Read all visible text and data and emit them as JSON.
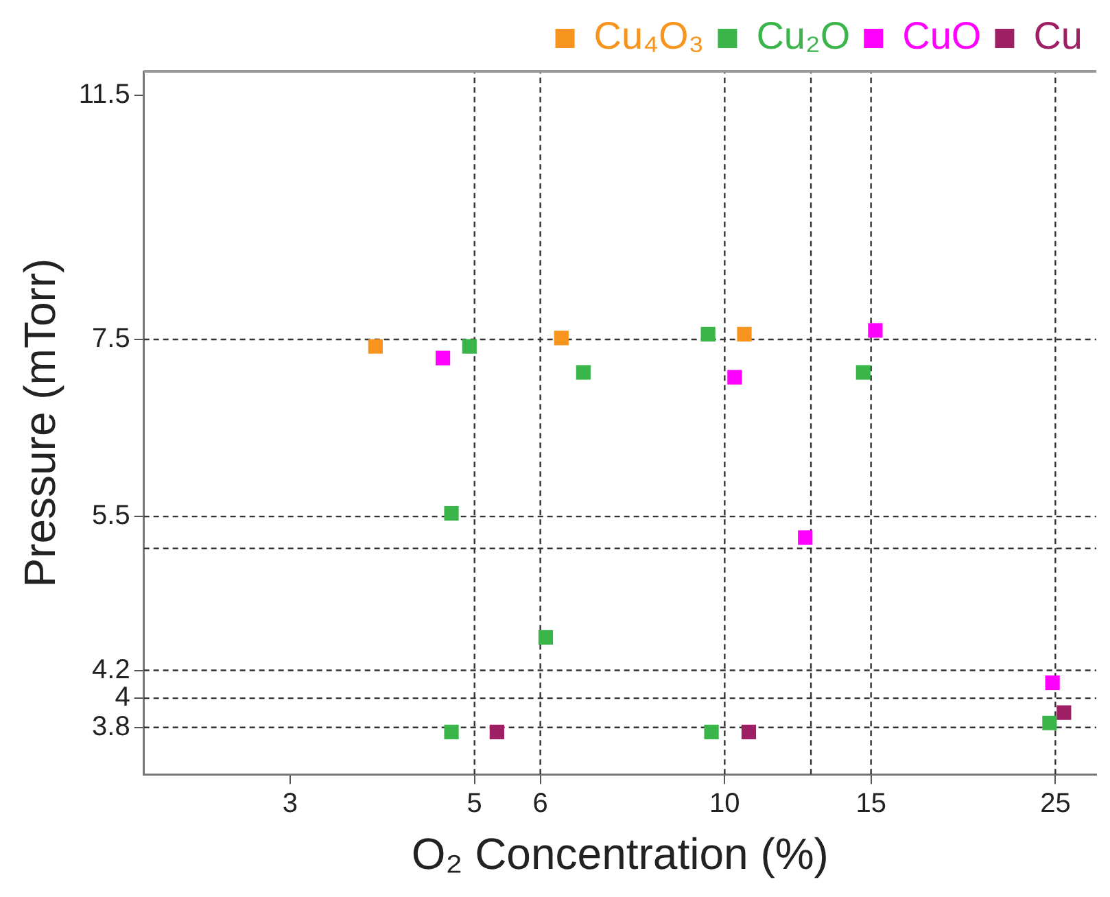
{
  "chart_data": {
    "type": "scatter",
    "xlabel": "O₂ Concentration (%)",
    "ylabel": "Pressure (mTorr)",
    "xlim": [
      2,
      28
    ],
    "xticks": [
      3,
      5,
      6,
      10,
      15,
      25
    ],
    "ylim": [
      3.5,
      12
    ],
    "yticks": [
      3.8,
      4,
      4.2,
      5.5,
      7.5,
      11.5
    ],
    "marker": "square",
    "legend": "top right",
    "grid": false,
    "log": "xy",
    "series": [
      {
        "name": "Cu₄O₃",
        "color": "#f7941d",
        "x": [
          3.8,
          6.36,
          10.56
        ],
        "values": [
          7.41,
          7.52,
          7.57
        ]
      },
      {
        "name": "Cu₂O",
        "color": "#39b54a",
        "x": [
          4.93,
          6.76,
          9.55,
          14.68,
          4.69,
          6.09,
          4.69,
          9.64,
          24.6
        ],
        "values": [
          7.41,
          7.08,
          7.57,
          7.08,
          5.53,
          4.45,
          3.77,
          3.77,
          3.83
        ]
      },
      {
        "name": "CuO",
        "color": "#ff00ff",
        "x": [
          4.58,
          10.28,
          15.18,
          12.5,
          24.8
        ],
        "values": [
          7.26,
          7.02,
          7.62,
          5.3,
          4.11
        ]
      },
      {
        "name": "Cu",
        "color": "#9e1f63",
        "x": [
          5.32,
          10.69,
          25.6
        ],
        "values": [
          3.77,
          3.77,
          3.9
        ]
      }
    ],
    "ref_lines": [
      {
        "axis": "x",
        "value": 5,
        "color": "#333333",
        "line_style": "dashed"
      },
      {
        "axis": "x",
        "value": 6,
        "color": "#333333",
        "line_style": "dashed"
      },
      {
        "axis": "x",
        "value": 10,
        "color": "#333333",
        "line_style": "dashed"
      },
      {
        "axis": "x",
        "value": 12.7,
        "color": "#333333",
        "line_style": "dashed"
      },
      {
        "axis": "x",
        "value": 15,
        "color": "#333333",
        "line_style": "dashed"
      },
      {
        "axis": "x",
        "value": 25,
        "color": "#333333",
        "line_style": "dashed"
      },
      {
        "axis": "y",
        "value": 7.5,
        "color": "#333333",
        "line_style": "dashed"
      },
      {
        "axis": "y",
        "value": 5.5,
        "color": "#333333",
        "line_style": "dashed"
      },
      {
        "axis": "y",
        "value": 5.2,
        "color": "#333333",
        "line_style": "dashed"
      },
      {
        "axis": "y",
        "value": 4.2,
        "color": "#333333",
        "line_style": "dashed"
      },
      {
        "axis": "y",
        "value": 4,
        "color": "#333333",
        "line_style": "dashed"
      },
      {
        "axis": "y",
        "value": 3.8,
        "color": "#333333",
        "line_style": "dashed"
      }
    ]
  }
}
